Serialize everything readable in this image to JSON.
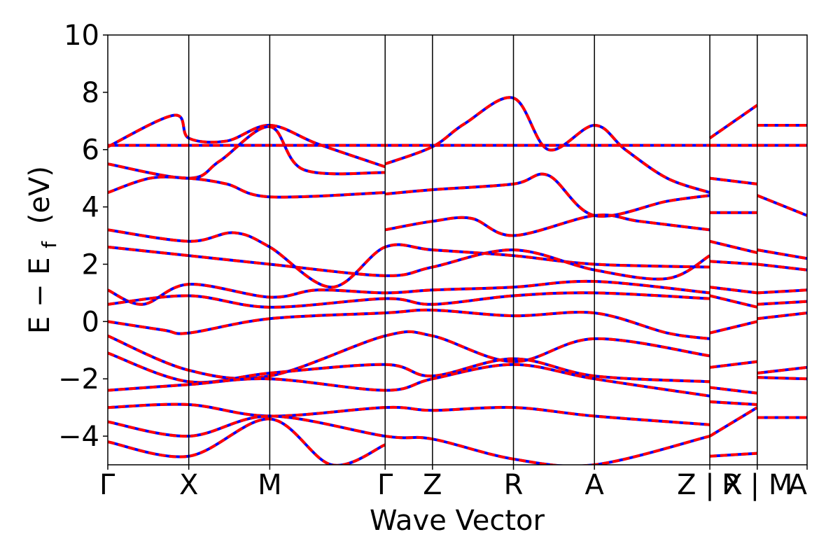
{
  "chart_data": {
    "type": "line",
    "xlabel": "Wave Vector",
    "ylabel_main": "E − E",
    "ylabel_sub": "f",
    "ylabel_unit": "(eV)",
    "ylim": [
      -5,
      10
    ],
    "yticks": [
      -4,
      -2,
      0,
      2,
      4,
      6,
      8,
      10
    ],
    "ytick_labels": [
      "−4",
      "−2",
      "0",
      "2",
      "4",
      "6",
      "8",
      "10"
    ],
    "xlim": [
      0,
      10
    ],
    "kpoint_positions": [
      0,
      1.158,
      2.316,
      3.966,
      4.643,
      5.801,
      6.959,
      8.609,
      9.287,
      10.0
    ],
    "kpoint_labels": [
      "Γ",
      "X",
      "M",
      "Γ",
      "Z",
      "R",
      "A",
      "Z | X",
      "R | M",
      "A"
    ],
    "segment_breaks": [
      8.609,
      9.287
    ],
    "line_style": {
      "color_a": "#ff0000",
      "color_b": "#0000ff",
      "dashed_overlay": true
    },
    "series": [
      {
        "x": [
          0,
          1.158,
          2.316,
          3.966,
          4.643,
          5.801,
          6.959,
          8.609
        ],
        "y": [
          6.15,
          6.15,
          6.15,
          6.15,
          6.15,
          6.15,
          6.15,
          6.15
        ]
      },
      {
        "x": [
          0,
          0.95,
          1.158,
          1.7,
          2.316,
          3.0,
          3.966
        ],
        "y": [
          6.1,
          7.2,
          6.4,
          6.3,
          6.85,
          6.2,
          5.4
        ]
      },
      {
        "x": [
          0,
          1.158,
          1.6,
          2.316,
          2.8,
          3.966
        ],
        "y": [
          5.5,
          5.0,
          5.6,
          6.8,
          5.3,
          5.2
        ]
      },
      {
        "x": [
          0,
          0.6,
          1.158,
          1.7,
          2.316,
          3.966
        ],
        "y": [
          4.5,
          5.0,
          5.0,
          4.8,
          4.35,
          4.5
        ]
      },
      {
        "x": [
          3.966,
          4.643,
          5.1,
          5.801,
          6.3,
          6.959,
          7.4,
          8.0,
          8.609
        ],
        "y": [
          5.5,
          6.1,
          6.9,
          7.8,
          6.0,
          6.85,
          6.0,
          5.0,
          4.5
        ]
      },
      {
        "x": [
          3.966,
          4.643,
          5.801,
          6.3,
          6.959,
          8.0,
          8.609
        ],
        "y": [
          4.45,
          4.6,
          4.8,
          5.1,
          3.7,
          4.2,
          4.4
        ]
      },
      {
        "x": [
          3.966,
          4.643,
          5.2,
          5.801,
          6.959,
          7.6,
          8.609
        ],
        "y": [
          3.2,
          3.5,
          3.6,
          3.0,
          3.7,
          3.5,
          3.2
        ]
      },
      {
        "x": [
          0,
          1.158,
          1.8,
          2.316,
          3.2,
          3.966,
          4.643,
          5.801,
          6.959,
          8.609
        ],
        "y": [
          3.2,
          2.8,
          3.1,
          2.6,
          1.2,
          2.6,
          2.5,
          2.3,
          2.0,
          1.9
        ]
      },
      {
        "x": [
          0,
          1.158,
          2.316,
          3.966,
          4.643,
          5.801,
          6.959,
          8.0,
          8.609
        ],
        "y": [
          2.6,
          2.3,
          2.0,
          1.6,
          1.9,
          2.5,
          1.8,
          1.5,
          2.3
        ]
      },
      {
        "x": [
          0,
          0.5,
          1.158,
          2.316,
          3.0,
          3.966,
          4.643,
          5.801,
          6.959,
          8.609
        ],
        "y": [
          1.1,
          0.6,
          1.3,
          0.85,
          1.1,
          1.0,
          1.1,
          1.2,
          1.4,
          1.0
        ]
      },
      {
        "x": [
          0,
          1.158,
          2.316,
          3.966,
          4.643,
          5.801,
          6.959,
          8.609
        ],
        "y": [
          0.6,
          0.9,
          0.5,
          0.8,
          0.6,
          0.9,
          1.0,
          0.8
        ]
      },
      {
        "x": [
          0,
          0.8,
          1.158,
          2.316,
          3.966,
          4.643,
          5.801,
          6.959,
          8.0,
          8.609
        ],
        "y": [
          0.0,
          -0.3,
          -0.4,
          0.1,
          0.3,
          0.4,
          0.2,
          0.3,
          -0.4,
          -0.6
        ]
      },
      {
        "x": [
          0,
          1.158,
          2.316,
          3.966,
          4.643,
          5.801,
          6.959,
          8.609
        ],
        "y": [
          -0.5,
          -1.7,
          -1.9,
          -0.5,
          -0.5,
          -1.4,
          -0.6,
          -1.2
        ]
      },
      {
        "x": [
          0,
          1.158,
          2.316,
          3.966,
          4.643,
          5.801,
          6.959,
          8.609
        ],
        "y": [
          -1.1,
          -2.1,
          -1.8,
          -1.5,
          -1.9,
          -1.3,
          -1.9,
          -2.1
        ]
      },
      {
        "x": [
          0,
          1.158,
          2.316,
          3.966,
          4.643,
          5.801,
          6.959,
          8.609
        ],
        "y": [
          -2.4,
          -2.2,
          -2.0,
          -2.4,
          -2.0,
          -1.5,
          -2.0,
          -2.6
        ]
      },
      {
        "x": [
          0,
          1.158,
          2.316,
          3.966,
          4.643,
          5.801,
          6.959,
          8.609
        ],
        "y": [
          -3.0,
          -2.9,
          -3.3,
          -3.0,
          -3.1,
          -3.0,
          -3.3,
          -3.6
        ]
      },
      {
        "x": [
          0,
          1.158,
          2.316,
          3.966,
          4.643,
          5.801,
          6.959,
          8.609
        ],
        "y": [
          -3.5,
          -4.0,
          -3.3,
          -4.0,
          -4.1,
          -4.8,
          -5.0,
          -4.0
        ]
      },
      {
        "x": [
          0,
          1.158,
          2.316,
          3.2,
          3.966
        ],
        "y": [
          -4.2,
          -4.7,
          -3.4,
          -5.0,
          -4.3
        ]
      },
      {
        "x": [
          8.609,
          9.287
        ],
        "y": [
          6.4,
          7.55
        ]
      },
      {
        "x": [
          8.609,
          9.287
        ],
        "y": [
          6.15,
          6.15
        ]
      },
      {
        "x": [
          8.609,
          9.287
        ],
        "y": [
          5.0,
          4.8
        ]
      },
      {
        "x": [
          8.609,
          9.287
        ],
        "y": [
          3.8,
          3.8
        ]
      },
      {
        "x": [
          8.609,
          9.287
        ],
        "y": [
          2.8,
          2.4
        ]
      },
      {
        "x": [
          8.609,
          9.287
        ],
        "y": [
          2.1,
          2.0
        ]
      },
      {
        "x": [
          8.609,
          9.287
        ],
        "y": [
          1.2,
          1.0
        ]
      },
      {
        "x": [
          8.609,
          9.287
        ],
        "y": [
          0.9,
          0.5
        ]
      },
      {
        "x": [
          8.609,
          9.287
        ],
        "y": [
          -0.4,
          0.0
        ]
      },
      {
        "x": [
          8.609,
          9.287
        ],
        "y": [
          -1.6,
          -1.4
        ]
      },
      {
        "x": [
          8.609,
          9.287
        ],
        "y": [
          -2.3,
          -2.5
        ]
      },
      {
        "x": [
          8.609,
          9.287
        ],
        "y": [
          -2.8,
          -2.9
        ]
      },
      {
        "x": [
          8.609,
          9.287
        ],
        "y": [
          -4.0,
          -3.0
        ]
      },
      {
        "x": [
          8.609,
          9.287
        ],
        "y": [
          -4.7,
          -4.6
        ]
      },
      {
        "x": [
          9.287,
          10.0
        ],
        "y": [
          6.85,
          6.85
        ]
      },
      {
        "x": [
          9.287,
          10.0
        ],
        "y": [
          6.15,
          6.15
        ]
      },
      {
        "x": [
          9.287,
          10.0
        ],
        "y": [
          4.4,
          3.7
        ]
      },
      {
        "x": [
          9.287,
          10.0
        ],
        "y": [
          2.5,
          2.2
        ]
      },
      {
        "x": [
          9.287,
          10.0
        ],
        "y": [
          2.0,
          1.8
        ]
      },
      {
        "x": [
          9.287,
          10.0
        ],
        "y": [
          1.0,
          1.1
        ]
      },
      {
        "x": [
          9.287,
          10.0
        ],
        "y": [
          0.6,
          0.7
        ]
      },
      {
        "x": [
          9.287,
          10.0
        ],
        "y": [
          0.1,
          0.3
        ]
      },
      {
        "x": [
          9.287,
          10.0
        ],
        "y": [
          -1.8,
          -1.6
        ]
      },
      {
        "x": [
          9.287,
          10.0
        ],
        "y": [
          -1.95,
          -2.0
        ]
      },
      {
        "x": [
          9.287,
          10.0
        ],
        "y": [
          -3.35,
          -3.35
        ]
      }
    ]
  }
}
